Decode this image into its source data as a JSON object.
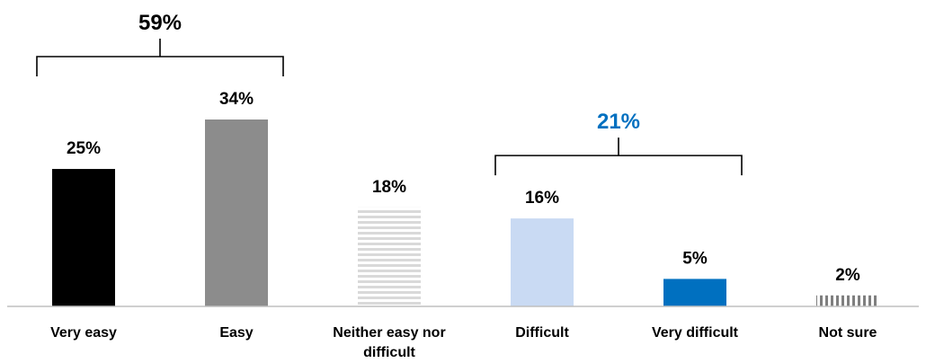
{
  "chart_data": {
    "type": "bar",
    "title": "",
    "xlabel": "",
    "ylabel": "",
    "ylim": [
      0,
      34
    ],
    "grid": false,
    "categories": [
      "Very easy",
      "Easy",
      "Neither easy nor difficult",
      "Difficult",
      "Very difficult",
      "Not sure"
    ],
    "category_lines": [
      [
        "Very easy"
      ],
      [
        "Easy"
      ],
      [
        "Neither easy nor",
        "difficult"
      ],
      [
        "Difficult"
      ],
      [
        "Very difficult"
      ],
      [
        "Not sure"
      ]
    ],
    "values": [
      25,
      34,
      18,
      16,
      5,
      2
    ],
    "value_labels": [
      "25%",
      "34%",
      "18%",
      "16%",
      "5%",
      "2%"
    ],
    "bar_styles": [
      {
        "fill": "#000000",
        "pattern": "solid"
      },
      {
        "fill": "#8c8c8c",
        "pattern": "solid"
      },
      {
        "fill": "#d9d9d9",
        "pattern": "horizontal-stripes"
      },
      {
        "fill": "#c9daf3",
        "pattern": "solid"
      },
      {
        "fill": "#0070c0",
        "pattern": "solid"
      },
      {
        "fill": "#7f7f7f",
        "pattern": "vertical-dashes"
      }
    ],
    "annotations": [
      {
        "label": "59%",
        "spans": [
          "Very easy",
          "Easy"
        ],
        "color": "#000000"
      },
      {
        "label": "21%",
        "spans": [
          "Difficult",
          "Very difficult"
        ],
        "color": "#0070c0"
      }
    ],
    "axis_color": "#bfbfbf",
    "label_color": "#000000"
  }
}
